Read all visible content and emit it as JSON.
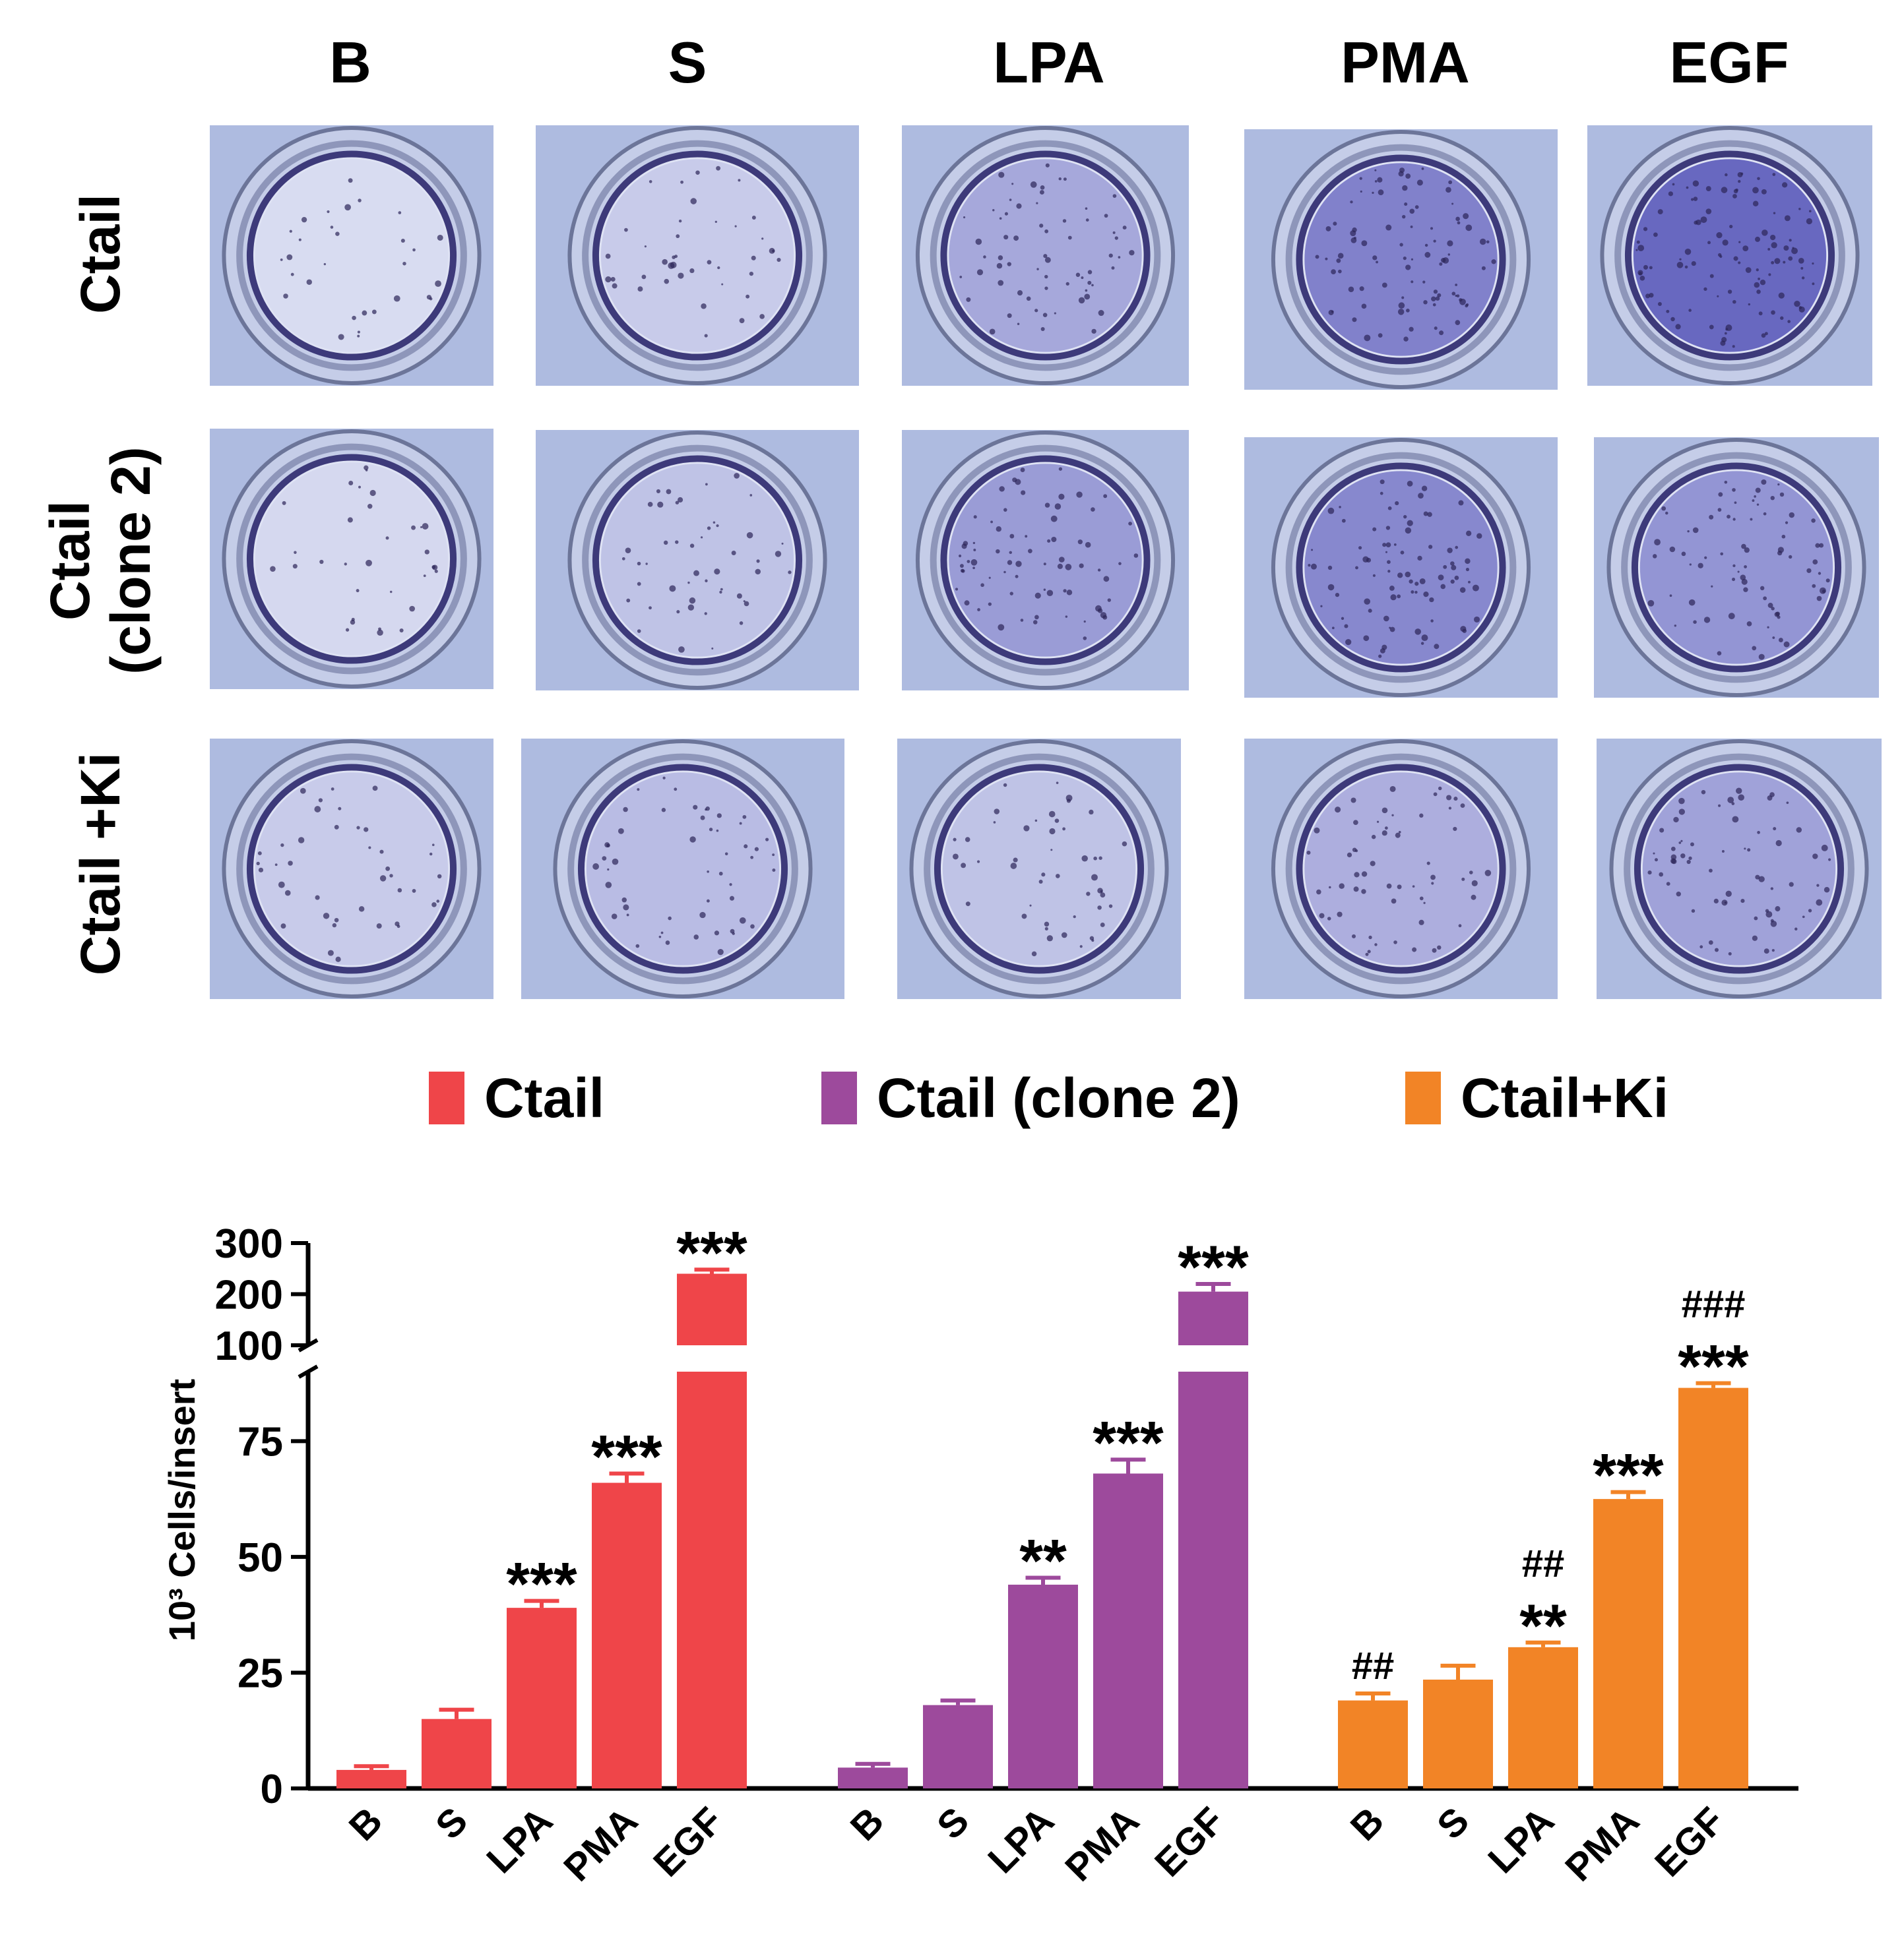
{
  "column_titles": [
    "B",
    "S",
    "LPA",
    "PMA",
    "EGF"
  ],
  "row_titles": [
    "Ctail",
    "Ctail\n(clone 2)",
    "Ctail +Ki"
  ],
  "legend": [
    {
      "label": "Ctail",
      "color": "#ef4549"
    },
    {
      "label": "Ctail (clone 2)",
      "color": "#9d4a9c"
    },
    {
      "label": "Ctail+Ki",
      "color": "#f28426"
    }
  ],
  "photo_colors": {
    "background": "#aebbe0",
    "rim": "#6c7599",
    "stain": "#4b4ab4",
    "dot": "#2c2558"
  },
  "chart_data": {
    "type": "bar",
    "ylabel": "10³ Cells/insert",
    "y_lower_ticks": [
      0,
      25,
      50,
      75
    ],
    "y_upper_ticks": [
      100,
      200,
      300
    ],
    "y_break": [
      90,
      100
    ],
    "groups": [
      {
        "series": "Ctail",
        "color": "#ef4549",
        "categories": [
          "B",
          "S",
          "LPA",
          "PMA",
          "EGF"
        ],
        "values": [
          4,
          15,
          39,
          66,
          240
        ],
        "errors": [
          0.8,
          2.0,
          1.5,
          2.0,
          8
        ],
        "annotations": [
          "",
          "",
          "***",
          "***",
          "***"
        ]
      },
      {
        "series": "Ctail (clone 2)",
        "color": "#9d4a9c",
        "categories": [
          "B",
          "S",
          "LPA",
          "PMA",
          "EGF"
        ],
        "values": [
          4.5,
          18,
          44,
          68,
          205
        ],
        "errors": [
          0.8,
          1.0,
          1.5,
          3.0,
          15
        ],
        "annotations": [
          "",
          "",
          "**",
          "***",
          "***"
        ]
      },
      {
        "series": "Ctail+Ki",
        "color": "#f28426",
        "categories": [
          "B",
          "S",
          "LPA",
          "PMA",
          "EGF"
        ],
        "values": [
          19,
          23.5,
          30.5,
          62.5,
          86.5
        ],
        "errors": [
          1.5,
          3.0,
          1.0,
          1.5,
          1.0
        ],
        "annotations": [
          "##",
          "",
          "##\n**",
          "***",
          "###\n***"
        ]
      }
    ]
  }
}
